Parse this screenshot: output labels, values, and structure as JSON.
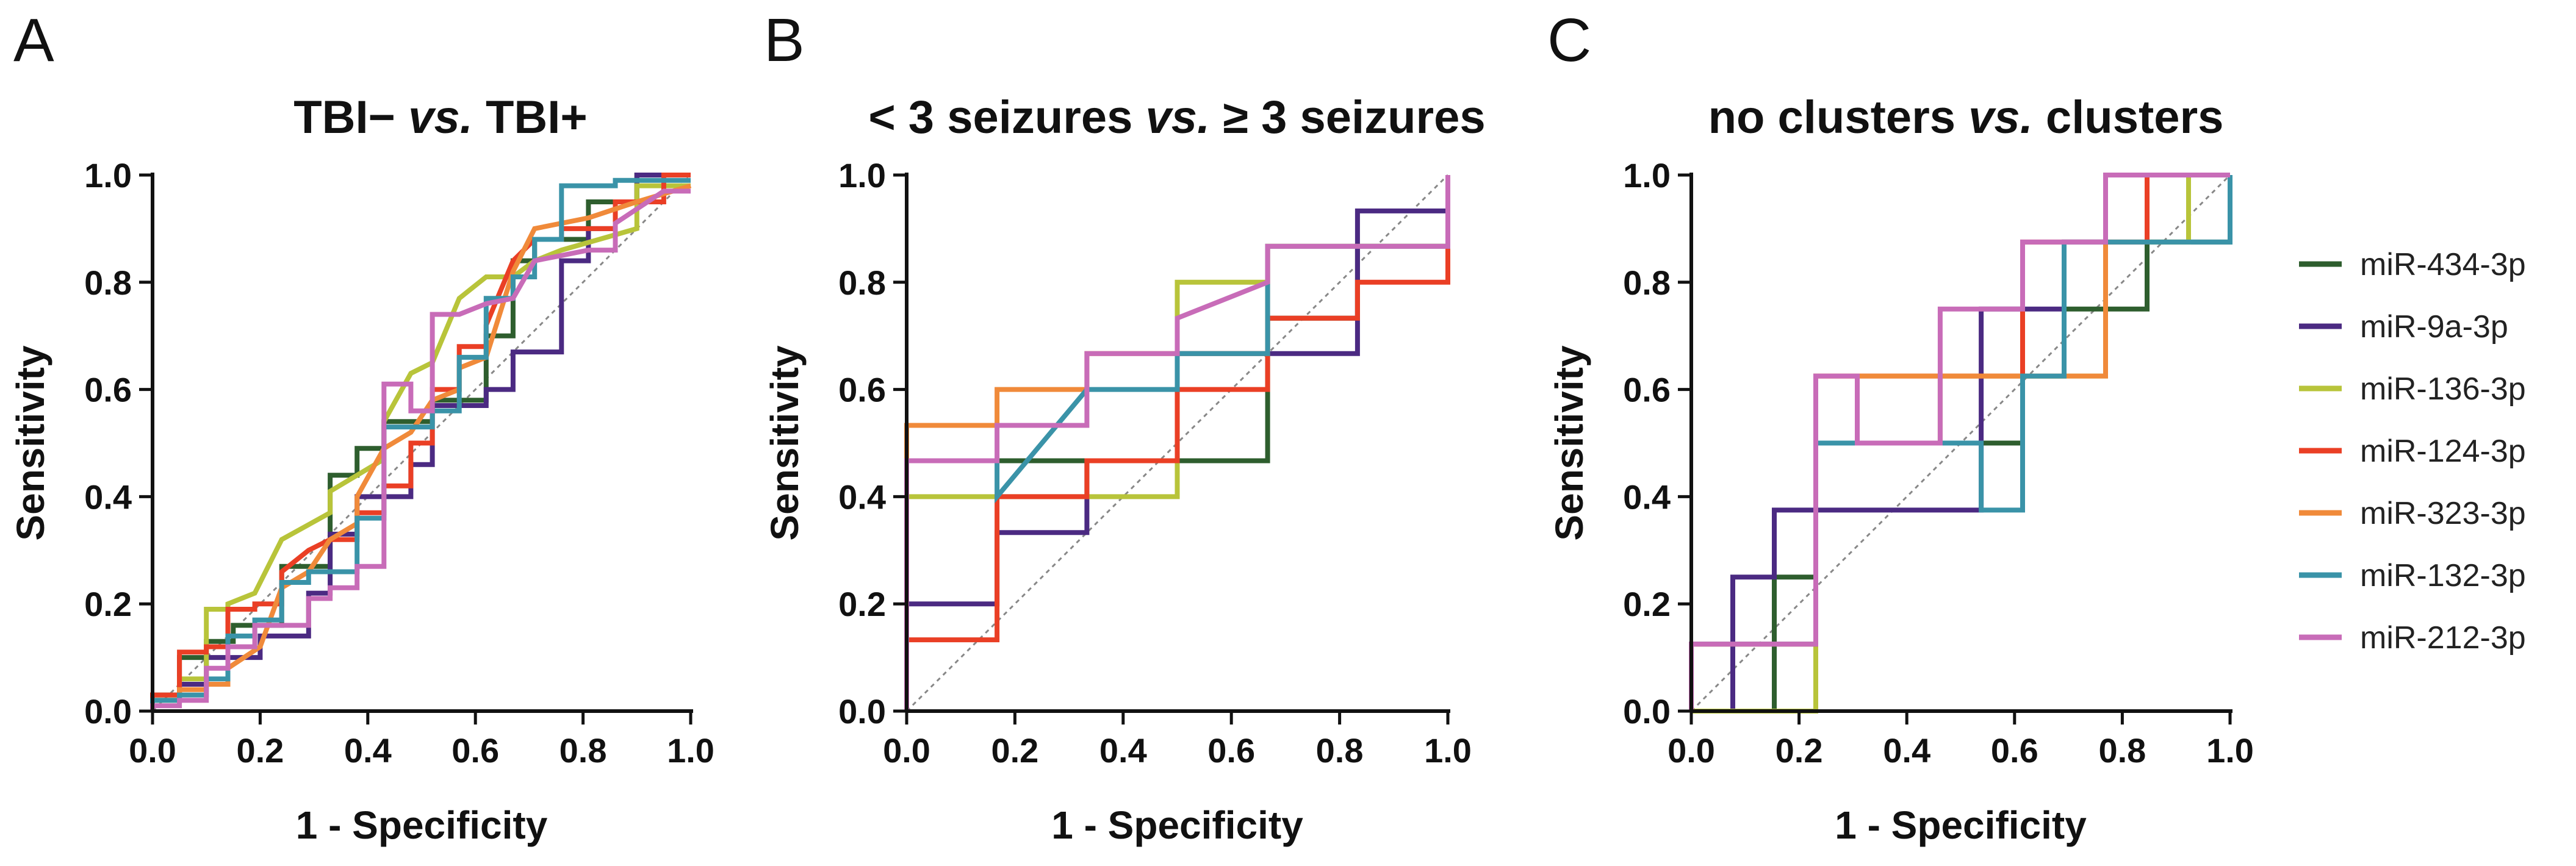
{
  "figure": {
    "legend": [
      {
        "name": "miR-434-3p",
        "color": "#2e5e2e"
      },
      {
        "name": "miR-9a-3p",
        "color": "#4b2a82"
      },
      {
        "name": "miR-136-3p",
        "color": "#b8c43a"
      },
      {
        "name": "miR-124-3p",
        "color": "#ea3f25"
      },
      {
        "name": "miR-323-3p",
        "color": "#f08a3a"
      },
      {
        "name": "miR-132-3p",
        "color": "#3a93a8"
      },
      {
        "name": "miR-212-3p",
        "color": "#c86cb8"
      }
    ]
  },
  "chart_data": [
    {
      "type": "line",
      "letter": "A",
      "title_parts": [
        {
          "text": "TBI− ",
          "italic": false
        },
        {
          "text": "vs.",
          "italic": true
        },
        {
          "text": " TBI+",
          "italic": false
        }
      ],
      "xlabel": "1 - Specificity",
      "ylabel": "Sensitivity",
      "xlim": [
        0,
        1
      ],
      "ylim": [
        0,
        1
      ],
      "ticks": [
        "0.0",
        "0.2",
        "0.4",
        "0.6",
        "0.8",
        "1.0"
      ],
      "diagonal": true,
      "series": [
        {
          "name": "miR-434-3p",
          "x": [
            0,
            0,
            0.05,
            0.05,
            0.1,
            0.1,
            0.15,
            0.15,
            0.24,
            0.24,
            0.33,
            0.33,
            0.38,
            0.38,
            0.43,
            0.43,
            0.52,
            0.52,
            0.62,
            0.62,
            0.67,
            0.67,
            0.71,
            0.71,
            0.81,
            0.81,
            0.9,
            0.9,
            1
          ],
          "y": [
            0,
            0.03,
            0.03,
            0.1,
            0.1,
            0.13,
            0.13,
            0.16,
            0.16,
            0.27,
            0.27,
            0.44,
            0.44,
            0.49,
            0.49,
            0.54,
            0.54,
            0.58,
            0.58,
            0.7,
            0.7,
            0.84,
            0.84,
            0.88,
            0.88,
            0.95,
            0.95,
            1,
            1
          ]
        },
        {
          "name": "miR-9a-3p",
          "x": [
            0,
            0,
            0.05,
            0.05,
            0.1,
            0.1,
            0.2,
            0.2,
            0.29,
            0.29,
            0.33,
            0.33,
            0.38,
            0.38,
            0.48,
            0.48,
            0.52,
            0.52,
            0.62,
            0.62,
            0.67,
            0.67,
            0.76,
            0.76,
            0.81,
            0.81,
            0.86,
            0.86,
            0.9,
            0.9,
            1
          ],
          "y": [
            0,
            0.02,
            0.02,
            0.05,
            0.05,
            0.1,
            0.1,
            0.14,
            0.14,
            0.22,
            0.22,
            0.33,
            0.33,
            0.4,
            0.4,
            0.46,
            0.46,
            0.57,
            0.57,
            0.6,
            0.6,
            0.67,
            0.67,
            0.84,
            0.84,
            0.9,
            0.9,
            0.95,
            0.95,
            1,
            1
          ]
        },
        {
          "name": "miR-136-3p",
          "x": [
            0,
            0,
            0.05,
            0.05,
            0.1,
            0.1,
            0.14,
            0.14,
            0.19,
            0.24,
            0.33,
            0.33,
            0.43,
            0.43,
            0.48,
            0.52,
            0.57,
            0.62,
            0.67,
            0.71,
            0.76,
            0.9,
            0.9,
            1
          ],
          "y": [
            0,
            0.02,
            0.02,
            0.06,
            0.06,
            0.19,
            0.19,
            0.2,
            0.22,
            0.32,
            0.37,
            0.41,
            0.47,
            0.54,
            0.63,
            0.65,
            0.77,
            0.81,
            0.81,
            0.84,
            0.86,
            0.9,
            0.98,
            0.98
          ]
        },
        {
          "name": "miR-124-3p",
          "x": [
            0,
            0,
            0.05,
            0.05,
            0.1,
            0.1,
            0.14,
            0.14,
            0.19,
            0.19,
            0.24,
            0.24,
            0.29,
            0.33,
            0.38,
            0.38,
            0.43,
            0.43,
            0.48,
            0.48,
            0.52,
            0.52,
            0.57,
            0.57,
            0.62,
            0.62,
            0.67,
            0.71,
            0.76,
            0.76,
            0.86,
            0.86,
            0.95,
            0.95,
            1
          ],
          "y": [
            0,
            0.03,
            0.03,
            0.11,
            0.11,
            0.12,
            0.12,
            0.19,
            0.19,
            0.2,
            0.2,
            0.26,
            0.3,
            0.32,
            0.32,
            0.37,
            0.37,
            0.42,
            0.42,
            0.5,
            0.5,
            0.6,
            0.6,
            0.68,
            0.68,
            0.72,
            0.84,
            0.88,
            0.88,
            0.9,
            0.9,
            0.95,
            0.95,
            1,
            1
          ]
        },
        {
          "name": "miR-323-3p",
          "x": [
            0,
            0,
            0.05,
            0.05,
            0.1,
            0.1,
            0.14,
            0.14,
            0.2,
            0.24,
            0.29,
            0.33,
            0.38,
            0.38,
            0.43,
            0.48,
            0.52,
            0.57,
            0.57,
            0.62,
            0.67,
            0.71,
            0.81,
            0.9,
            1
          ],
          "y": [
            0,
            0.02,
            0.02,
            0.04,
            0.04,
            0.05,
            0.05,
            0.08,
            0.12,
            0.23,
            0.26,
            0.32,
            0.35,
            0.4,
            0.49,
            0.52,
            0.58,
            0.6,
            0.64,
            0.66,
            0.82,
            0.9,
            0.92,
            0.95,
            0.98
          ]
        },
        {
          "name": "miR-132-3p",
          "x": [
            0,
            0,
            0.05,
            0.05,
            0.1,
            0.1,
            0.14,
            0.14,
            0.19,
            0.19,
            0.24,
            0.24,
            0.29,
            0.29,
            0.38,
            0.38,
            0.43,
            0.43,
            0.52,
            0.52,
            0.57,
            0.57,
            0.62,
            0.62,
            0.67,
            0.67,
            0.71,
            0.71,
            0.76,
            0.76,
            0.86,
            0.86,
            1
          ],
          "y": [
            0,
            0.02,
            0.02,
            0.03,
            0.03,
            0.06,
            0.06,
            0.14,
            0.14,
            0.17,
            0.17,
            0.24,
            0.24,
            0.26,
            0.26,
            0.36,
            0.36,
            0.53,
            0.53,
            0.56,
            0.56,
            0.66,
            0.66,
            0.77,
            0.77,
            0.81,
            0.81,
            0.88,
            0.88,
            0.98,
            0.98,
            0.99,
            0.99
          ]
        },
        {
          "name": "miR-212-3p",
          "x": [
            0,
            0,
            0.05,
            0.05,
            0.1,
            0.1,
            0.14,
            0.14,
            0.19,
            0.19,
            0.29,
            0.29,
            0.33,
            0.33,
            0.38,
            0.38,
            0.43,
            0.43,
            0.48,
            0.48,
            0.52,
            0.52,
            0.57,
            0.62,
            0.67,
            0.71,
            0.76,
            0.81,
            0.86,
            0.86,
            0.95,
            1
          ],
          "y": [
            0,
            0.01,
            0.01,
            0.02,
            0.02,
            0.08,
            0.08,
            0.12,
            0.12,
            0.16,
            0.16,
            0.21,
            0.21,
            0.23,
            0.23,
            0.27,
            0.27,
            0.61,
            0.61,
            0.56,
            0.56,
            0.74,
            0.74,
            0.76,
            0.77,
            0.84,
            0.85,
            0.86,
            0.86,
            0.91,
            0.97,
            0.97
          ]
        }
      ]
    },
    {
      "type": "line",
      "letter": "B",
      "title_parts": [
        {
          "text": "< 3 seizures ",
          "italic": false
        },
        {
          "text": "vs.",
          "italic": true
        },
        {
          "text": " ≥ 3 seizures",
          "italic": false
        }
      ],
      "xlabel": "1 - Specificity",
      "ylabel": "Sensitivity",
      "xlim": [
        0,
        1
      ],
      "ylim": [
        0,
        1
      ],
      "ticks": [
        "0.0",
        "0.2",
        "0.4",
        "0.6",
        "0.8",
        "1.0"
      ],
      "diagonal": true,
      "series": [
        {
          "name": "miR-434-3p",
          "x": [
            0,
            0,
            0.667,
            0.667,
            0.833,
            0.833,
            1,
            1
          ],
          "y": [
            0,
            0.467,
            0.467,
            0.733,
            0.733,
            0.867,
            0.867,
            1
          ]
        },
        {
          "name": "miR-9a-3p",
          "x": [
            0,
            0,
            0.167,
            0.167,
            0.333,
            0.333,
            0.5,
            0.5,
            0.833,
            0.833,
            1,
            1
          ],
          "y": [
            0,
            0.2,
            0.2,
            0.333,
            0.333,
            0.467,
            0.467,
            0.667,
            0.667,
            0.933,
            0.933,
            1
          ]
        },
        {
          "name": "miR-136-3p",
          "x": [
            0,
            0,
            0.5,
            0.5,
            0.667,
            0.667,
            1,
            1
          ],
          "y": [
            0,
            0.4,
            0.4,
            0.8,
            0.8,
            0.867,
            0.867,
            1
          ]
        },
        {
          "name": "miR-124-3p",
          "x": [
            0,
            0,
            0.167,
            0.167,
            0.333,
            0.333,
            0.5,
            0.5,
            0.667,
            0.667,
            0.833,
            0.833,
            1,
            1
          ],
          "y": [
            0,
            0.133,
            0.133,
            0.4,
            0.4,
            0.467,
            0.467,
            0.6,
            0.6,
            0.733,
            0.733,
            0.8,
            0.8,
            1
          ]
        },
        {
          "name": "miR-323-3p",
          "x": [
            0,
            0,
            0.167,
            0.167,
            0.333,
            0.333,
            0.5,
            0.5,
            0.667,
            0.667,
            1,
            1
          ],
          "y": [
            0,
            0.533,
            0.533,
            0.6,
            0.6,
            0.667,
            0.667,
            0.667,
            0.667,
            0.867,
            0.867,
            1
          ]
        },
        {
          "name": "miR-132-3p",
          "x": [
            0,
            0,
            0.167,
            0.167,
            0.333,
            0.333,
            0.5,
            0.5,
            0.667,
            0.667,
            1,
            1
          ],
          "y": [
            0,
            0.467,
            0.467,
            0.4,
            0.6,
            0.6,
            0.6,
            0.667,
            0.667,
            0.867,
            0.867,
            1
          ]
        },
        {
          "name": "miR-212-3p",
          "x": [
            0,
            0,
            0.167,
            0.167,
            0.333,
            0.333,
            0.5,
            0.5,
            0.667,
            0.667,
            1,
            1
          ],
          "y": [
            0,
            0.467,
            0.467,
            0.533,
            0.533,
            0.667,
            0.667,
            0.733,
            0.8,
            0.867,
            0.867,
            1
          ]
        }
      ]
    },
    {
      "type": "line",
      "letter": "C",
      "title_parts": [
        {
          "text": "no clusters ",
          "italic": false
        },
        {
          "text": "vs.",
          "italic": true
        },
        {
          "text": " clusters",
          "italic": false
        }
      ],
      "xlabel": "1 - Specificity",
      "ylabel": "Sensitivity",
      "xlim": [
        0,
        1
      ],
      "ylim": [
        0,
        1
      ],
      "ticks": [
        "0.0",
        "0.2",
        "0.4",
        "0.6",
        "0.8",
        "1.0"
      ],
      "diagonal": true,
      "series": [
        {
          "name": "miR-434-3p",
          "x": [
            0,
            0.154,
            0.154,
            0.231,
            0.231,
            0.615,
            0.615,
            0.692,
            0.692,
            0.846,
            0.846,
            1,
            1
          ],
          "y": [
            0,
            0,
            0.25,
            0.25,
            0.5,
            0.5,
            0.625,
            0.625,
            0.75,
            0.75,
            0.875,
            0.875,
            1
          ]
        },
        {
          "name": "miR-9a-3p",
          "x": [
            0,
            0.077,
            0.077,
            0.154,
            0.154,
            0.538,
            0.538,
            0.692,
            0.692,
            0.769,
            0.769,
            1,
            1
          ],
          "y": [
            0,
            0,
            0.25,
            0.25,
            0.375,
            0.375,
            0.75,
            0.75,
            0.875,
            0.875,
            1,
            1,
            1
          ]
        },
        {
          "name": "miR-136-3p",
          "x": [
            0,
            0.231,
            0.231,
            0.462,
            0.462,
            0.769,
            0.769,
            0.923,
            0.923,
            1
          ],
          "y": [
            0,
            0,
            0.5,
            0.5,
            0.625,
            0.625,
            0.875,
            0.875,
            1,
            1
          ]
        },
        {
          "name": "miR-124-3p",
          "x": [
            0,
            0,
            0.231,
            0.231,
            0.615,
            0.615,
            0.692,
            0.692,
            0.846,
            0.846,
            1,
            1
          ],
          "y": [
            0,
            0.125,
            0.125,
            0.625,
            0.625,
            0.875,
            0.875,
            0.875,
            0.875,
            1,
            1,
            1
          ]
        },
        {
          "name": "miR-323-3p",
          "x": [
            0,
            0,
            0.231,
            0.231,
            0.769,
            0.769,
            1
          ],
          "y": [
            0,
            0.125,
            0.125,
            0.625,
            0.625,
            1,
            1
          ]
        },
        {
          "name": "miR-132-3p",
          "x": [
            0,
            0,
            0.231,
            0.231,
            0.538,
            0.538,
            0.615,
            0.615,
            0.692,
            0.692,
            1,
            1
          ],
          "y": [
            0,
            0.125,
            0.125,
            0.5,
            0.5,
            0.375,
            0.375,
            0.625,
            0.625,
            0.875,
            0.875,
            1
          ]
        },
        {
          "name": "miR-212-3p",
          "x": [
            0,
            0,
            0.231,
            0.231,
            0.308,
            0.308,
            0.462,
            0.462,
            0.615,
            0.615,
            0.769,
            0.769,
            1
          ],
          "y": [
            0,
            0.125,
            0.125,
            0.625,
            0.625,
            0.5,
            0.5,
            0.75,
            0.75,
            0.875,
            0.875,
            1,
            1
          ]
        }
      ]
    }
  ]
}
